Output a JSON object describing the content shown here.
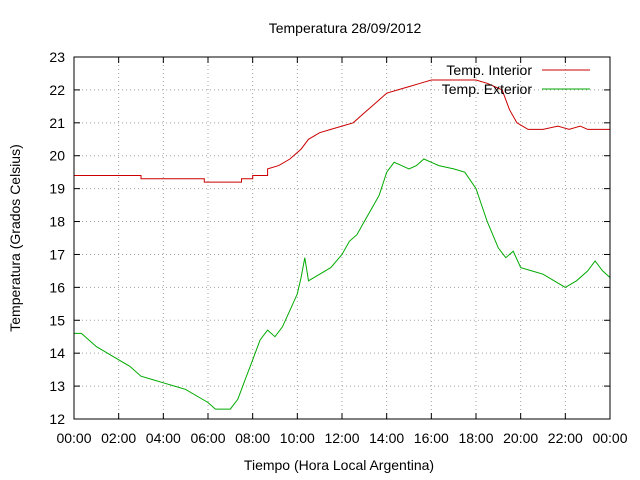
{
  "chart_data": {
    "type": "line",
    "title": "Temperatura 28/09/2012",
    "xlabel": "Tiempo (Hora Local Argentina)",
    "ylabel": "Temperatura (Grados Celsius)",
    "xlim": [
      "00:00",
      "24:00"
    ],
    "ylim": [
      12,
      23
    ],
    "yticks": [
      12,
      13,
      14,
      15,
      16,
      17,
      18,
      19,
      20,
      21,
      22,
      23
    ],
    "xtick_labels": [
      "00:00",
      "02:00",
      "04:00",
      "06:00",
      "08:00",
      "10:00",
      "12:00",
      "14:00",
      "16:00",
      "18:00",
      "20:00",
      "22:00",
      "00:00"
    ],
    "grid": true,
    "legend": "top-right",
    "series": [
      {
        "name": "Temp. Interior",
        "color": "#cc0000",
        "points": [
          [
            "00:00",
            19.4
          ],
          [
            "03:00",
            19.4
          ],
          [
            "03:00",
            19.3
          ],
          [
            "05:00",
            19.3
          ],
          [
            "05:50",
            19.3
          ],
          [
            "05:50",
            19.2
          ],
          [
            "07:30",
            19.2
          ],
          [
            "07:30",
            19.3
          ],
          [
            "08:00",
            19.3
          ],
          [
            "08:00",
            19.4
          ],
          [
            "08:40",
            19.4
          ],
          [
            "08:40",
            19.6
          ],
          [
            "09:10",
            19.7
          ],
          [
            "09:40",
            19.9
          ],
          [
            "10:10",
            20.2
          ],
          [
            "10:30",
            20.5
          ],
          [
            "11:00",
            20.7
          ],
          [
            "11:30",
            20.8
          ],
          [
            "12:00",
            20.9
          ],
          [
            "12:30",
            21.0
          ],
          [
            "13:00",
            21.3
          ],
          [
            "13:30",
            21.6
          ],
          [
            "14:00",
            21.9
          ],
          [
            "14:30",
            22.0
          ],
          [
            "15:00",
            22.1
          ],
          [
            "15:30",
            22.2
          ],
          [
            "16:00",
            22.3
          ],
          [
            "17:00",
            22.3
          ],
          [
            "18:00",
            22.3
          ],
          [
            "18:30",
            22.2
          ],
          [
            "19:10",
            22.0
          ],
          [
            "19:30",
            21.4
          ],
          [
            "19:50",
            21.0
          ],
          [
            "20:20",
            20.8
          ],
          [
            "21:00",
            20.8
          ],
          [
            "21:40",
            20.9
          ],
          [
            "22:10",
            20.8
          ],
          [
            "22:40",
            20.9
          ],
          [
            "23:00",
            20.8
          ],
          [
            "24:00",
            20.8
          ]
        ]
      },
      {
        "name": "Temp. Exterior",
        "color": "#00aa00",
        "points": [
          [
            "00:00",
            14.6
          ],
          [
            "00:20",
            14.6
          ],
          [
            "00:40",
            14.4
          ],
          [
            "01:00",
            14.2
          ],
          [
            "01:30",
            14.0
          ],
          [
            "02:00",
            13.8
          ],
          [
            "02:30",
            13.6
          ],
          [
            "03:00",
            13.3
          ],
          [
            "03:30",
            13.2
          ],
          [
            "04:00",
            13.1
          ],
          [
            "04:30",
            13.0
          ],
          [
            "05:00",
            12.9
          ],
          [
            "05:30",
            12.7
          ],
          [
            "06:00",
            12.5
          ],
          [
            "06:20",
            12.3
          ],
          [
            "07:00",
            12.3
          ],
          [
            "07:20",
            12.6
          ],
          [
            "07:40",
            13.2
          ],
          [
            "08:00",
            13.8
          ],
          [
            "08:20",
            14.4
          ],
          [
            "08:40",
            14.7
          ],
          [
            "09:00",
            14.5
          ],
          [
            "09:20",
            14.8
          ],
          [
            "09:40",
            15.3
          ],
          [
            "10:00",
            15.8
          ],
          [
            "10:10",
            16.3
          ],
          [
            "10:20",
            16.9
          ],
          [
            "10:30",
            16.2
          ],
          [
            "11:00",
            16.4
          ],
          [
            "11:30",
            16.6
          ],
          [
            "12:00",
            17.0
          ],
          [
            "12:20",
            17.4
          ],
          [
            "12:40",
            17.6
          ],
          [
            "13:00",
            18.0
          ],
          [
            "13:20",
            18.4
          ],
          [
            "13:40",
            18.8
          ],
          [
            "14:00",
            19.5
          ],
          [
            "14:20",
            19.8
          ],
          [
            "14:40",
            19.7
          ],
          [
            "15:00",
            19.6
          ],
          [
            "15:20",
            19.7
          ],
          [
            "15:40",
            19.9
          ],
          [
            "16:00",
            19.8
          ],
          [
            "16:20",
            19.7
          ],
          [
            "17:00",
            19.6
          ],
          [
            "17:30",
            19.5
          ],
          [
            "18:00",
            19.0
          ],
          [
            "18:30",
            18.0
          ],
          [
            "19:00",
            17.2
          ],
          [
            "19:20",
            16.9
          ],
          [
            "19:40",
            17.1
          ],
          [
            "20:00",
            16.6
          ],
          [
            "20:30",
            16.5
          ],
          [
            "21:00",
            16.4
          ],
          [
            "21:30",
            16.2
          ],
          [
            "22:00",
            16.0
          ],
          [
            "22:30",
            16.2
          ],
          [
            "23:00",
            16.5
          ],
          [
            "23:20",
            16.8
          ],
          [
            "23:40",
            16.5
          ],
          [
            "24:00",
            16.3
          ]
        ]
      }
    ]
  }
}
